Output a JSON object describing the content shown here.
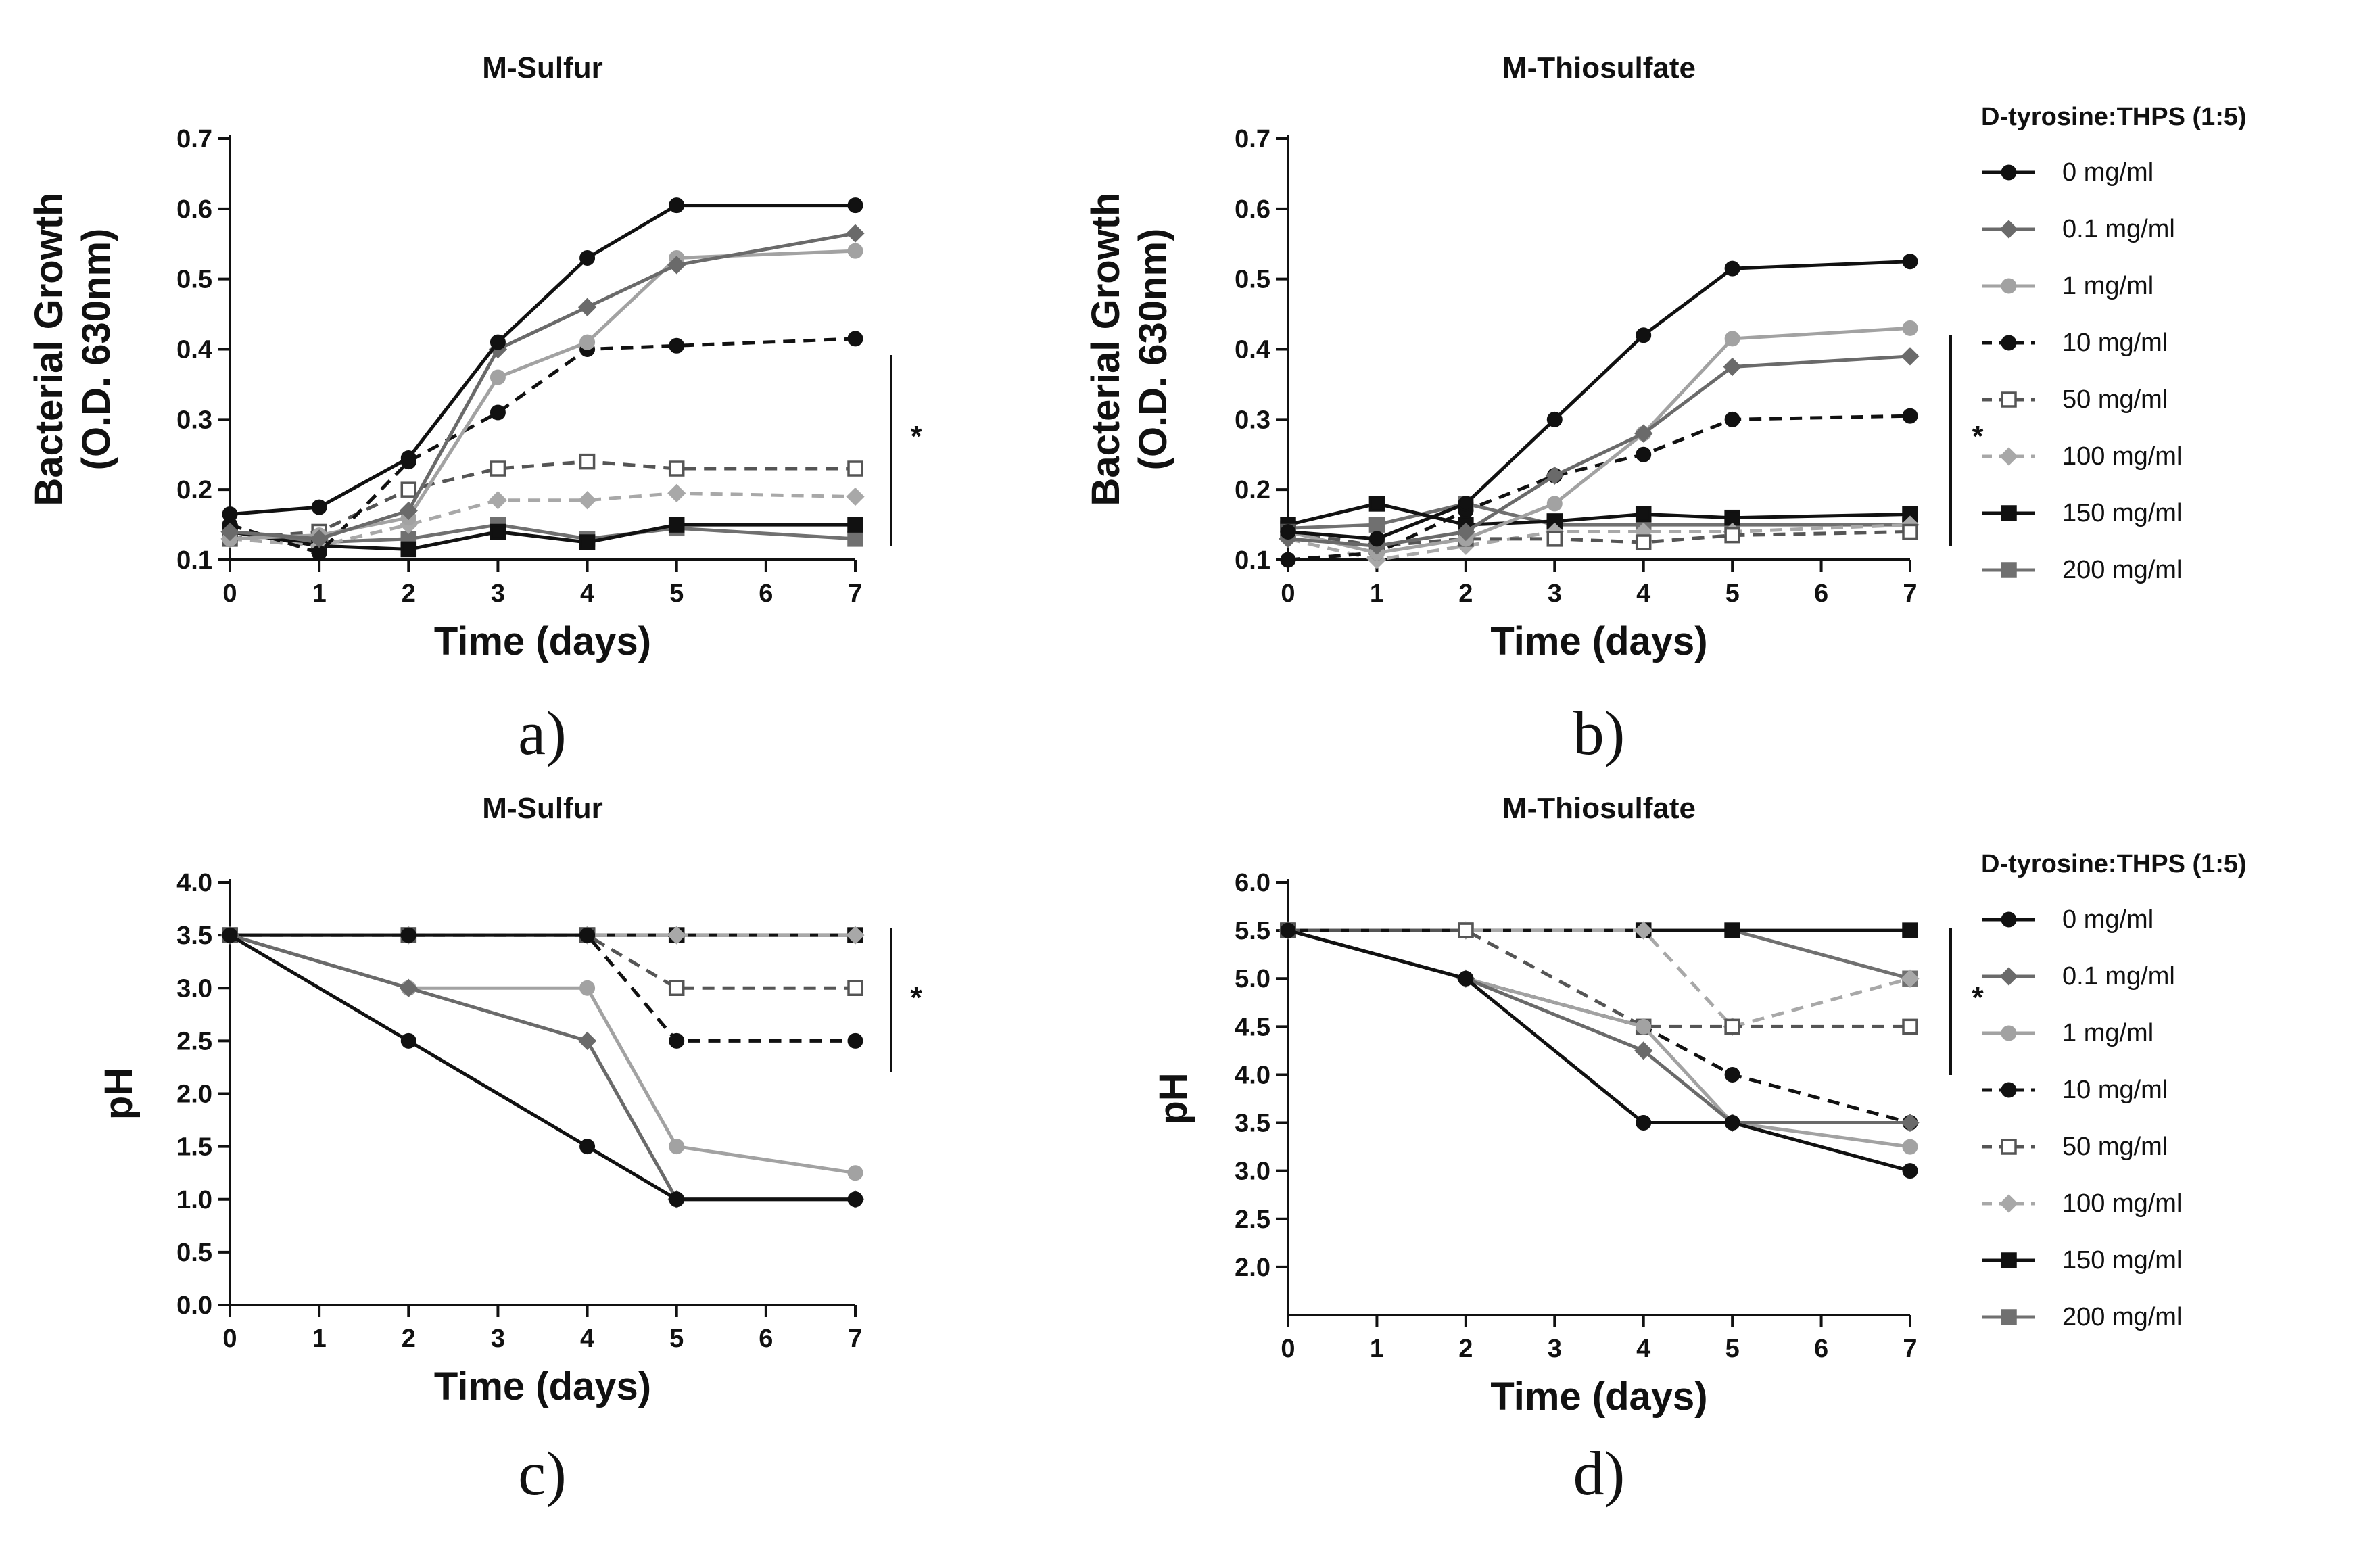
{
  "legend_title": "D-tyrosine:THPS (1:5)",
  "legend_entries": [
    "0 mg/ml",
    "0.1 mg/ml",
    "1 mg/ml",
    "10 mg/ml",
    "50 mg/ml",
    "100 mg/ml",
    "150 mg/ml",
    "200 mg/ml"
  ],
  "series_styles": [
    {
      "color": "#111111",
      "dash": false,
      "marker": "circle",
      "filled": true
    },
    {
      "color": "#6a6a6a",
      "dash": false,
      "marker": "diamond",
      "filled": true
    },
    {
      "color": "#a2a2a2",
      "dash": false,
      "marker": "circle",
      "filled": true
    },
    {
      "color": "#111111",
      "dash": true,
      "marker": "circle-half",
      "filled": true
    },
    {
      "color": "#555555",
      "dash": true,
      "marker": "square",
      "filled": false
    },
    {
      "color": "#a8a8a8",
      "dash": true,
      "marker": "diamond",
      "filled": true
    },
    {
      "color": "#111111",
      "dash": false,
      "marker": "square",
      "filled": true
    },
    {
      "color": "#707070",
      "dash": false,
      "marker": "square",
      "filled": true
    }
  ],
  "significance_marker": "*",
  "chart_data": [
    {
      "type": "line",
      "panel_label": "a)",
      "title": "M-Sulfur",
      "xlabel": "Time (days)",
      "ylabel": [
        "Bacterial Growth",
        "(O.D. 630nm)"
      ],
      "xlim": [
        0,
        7
      ],
      "ylim": [
        0.1,
        0.7
      ],
      "xticks": [
        "0",
        "1",
        "2",
        "3",
        "4",
        "5",
        "6",
        "7"
      ],
      "yticks": [
        "0.1",
        "0.2",
        "0.3",
        "0.4",
        "0.5",
        "0.6",
        "0.7"
      ],
      "significance": true,
      "series": [
        {
          "name": "0 mg/ml",
          "x": [
            0,
            1,
            2,
            3,
            4,
            5,
            7
          ],
          "y": [
            0.165,
            0.175,
            0.245,
            0.41,
            0.53,
            0.605,
            0.605
          ]
        },
        {
          "name": "0.1 mg/ml",
          "x": [
            0,
            1,
            2,
            3,
            4,
            5,
            7
          ],
          "y": [
            0.14,
            0.13,
            0.17,
            0.4,
            0.46,
            0.52,
            0.565
          ]
        },
        {
          "name": "1 mg/ml",
          "x": [
            0,
            1,
            2,
            3,
            4,
            5,
            7
          ],
          "y": [
            0.13,
            0.135,
            0.16,
            0.36,
            0.41,
            0.53,
            0.54
          ]
        },
        {
          "name": "10 mg/ml",
          "x": [
            0,
            1,
            2,
            3,
            4,
            5,
            7
          ],
          "y": [
            0.15,
            0.11,
            0.24,
            0.31,
            0.4,
            0.405,
            0.415
          ]
        },
        {
          "name": "50 mg/ml",
          "x": [
            0,
            1,
            2,
            3,
            4,
            5,
            7
          ],
          "y": [
            0.13,
            0.14,
            0.2,
            0.23,
            0.24,
            0.23,
            0.23
          ]
        },
        {
          "name": "100 mg/ml",
          "x": [
            0,
            1,
            2,
            3,
            4,
            5,
            7
          ],
          "y": [
            0.13,
            0.12,
            0.15,
            0.185,
            0.185,
            0.195,
            0.19
          ]
        },
        {
          "name": "150 mg/ml",
          "x": [
            0,
            1,
            2,
            3,
            4,
            5,
            7
          ],
          "y": [
            0.14,
            0.12,
            0.115,
            0.14,
            0.125,
            0.15,
            0.15
          ]
        },
        {
          "name": "200 mg/ml",
          "x": [
            0,
            1,
            2,
            3,
            4,
            5,
            7
          ],
          "y": [
            0.14,
            0.125,
            0.13,
            0.15,
            0.13,
            0.145,
            0.13
          ]
        }
      ]
    },
    {
      "type": "line",
      "panel_label": "b)",
      "title": "M-Thiosulfate",
      "xlabel": "Time (days)",
      "ylabel": [
        "Bacterial Growth",
        "(O.D. 630nm)"
      ],
      "xlim": [
        0,
        7
      ],
      "ylim": [
        0.1,
        0.7
      ],
      "xticks": [
        "0",
        "1",
        "2",
        "3",
        "4",
        "5",
        "6",
        "7"
      ],
      "yticks": [
        "0.1",
        "0.2",
        "0.3",
        "0.4",
        "0.5",
        "0.6",
        "0.7"
      ],
      "significance": true,
      "series": [
        {
          "name": "0 mg/ml",
          "x": [
            0,
            1,
            2,
            3,
            4,
            5,
            7
          ],
          "y": [
            0.14,
            0.13,
            0.18,
            0.3,
            0.42,
            0.515,
            0.525
          ]
        },
        {
          "name": "0.1 mg/ml",
          "x": [
            0,
            1,
            2,
            3,
            4,
            5,
            7
          ],
          "y": [
            0.13,
            0.12,
            0.14,
            0.22,
            0.28,
            0.375,
            0.39
          ]
        },
        {
          "name": "1 mg/ml",
          "x": [
            0,
            1,
            2,
            3,
            4,
            5,
            7
          ],
          "y": [
            0.14,
            0.11,
            0.13,
            0.18,
            0.28,
            0.415,
            0.43
          ]
        },
        {
          "name": "10 mg/ml",
          "x": [
            0,
            1,
            2,
            3,
            4,
            5,
            7
          ],
          "y": [
            0.1,
            0.11,
            0.17,
            0.22,
            0.25,
            0.3,
            0.305
          ]
        },
        {
          "name": "50 mg/ml",
          "x": [
            0,
            1,
            2,
            3,
            4,
            5,
            7
          ],
          "y": [
            0.14,
            0.12,
            0.13,
            0.13,
            0.125,
            0.135,
            0.14
          ]
        },
        {
          "name": "100 mg/ml",
          "x": [
            0,
            1,
            2,
            3,
            4,
            5,
            7
          ],
          "y": [
            0.13,
            0.1,
            0.12,
            0.14,
            0.14,
            0.14,
            0.15
          ]
        },
        {
          "name": "150 mg/ml",
          "x": [
            0,
            1,
            2,
            3,
            4,
            5,
            7
          ],
          "y": [
            0.15,
            0.18,
            0.15,
            0.155,
            0.165,
            0.16,
            0.165
          ]
        },
        {
          "name": "200 mg/ml",
          "x": [
            0,
            1,
            2,
            3,
            4,
            5,
            7
          ],
          "y": [
            0.145,
            0.15,
            0.18,
            0.15,
            0.15,
            0.15,
            0.15
          ]
        }
      ]
    },
    {
      "type": "line",
      "panel_label": "c)",
      "title": "M-Sulfur",
      "xlabel": "Time (days)",
      "ylabel": [
        "pH"
      ],
      "xlim": [
        0,
        7
      ],
      "ylim": [
        0,
        4
      ],
      "xticks": [
        "0",
        "1",
        "2",
        "3",
        "4",
        "5",
        "6",
        "7"
      ],
      "yticks": [
        "0.0",
        "0.5",
        "1.0",
        "1.5",
        "2.0",
        "2.5",
        "3.0",
        "3.5",
        "4.0"
      ],
      "significance": true,
      "series": [
        {
          "name": "0 mg/ml",
          "x": [
            0,
            2,
            4,
            5,
            7
          ],
          "y": [
            3.5,
            2.5,
            1.5,
            1.0,
            1.0
          ]
        },
        {
          "name": "0.1 mg/ml",
          "x": [
            0,
            2,
            4,
            5,
            7
          ],
          "y": [
            3.5,
            3.0,
            2.5,
            1.0,
            1.0
          ]
        },
        {
          "name": "1 mg/ml",
          "x": [
            0,
            2,
            4,
            5,
            7
          ],
          "y": [
            3.5,
            3.0,
            3.0,
            1.5,
            1.25
          ]
        },
        {
          "name": "10 mg/ml",
          "x": [
            0,
            2,
            4,
            5,
            7
          ],
          "y": [
            3.5,
            3.5,
            3.5,
            2.5,
            2.5
          ]
        },
        {
          "name": "50 mg/ml",
          "x": [
            0,
            2,
            4,
            5,
            7
          ],
          "y": [
            3.5,
            3.5,
            3.5,
            3.0,
            3.0
          ]
        },
        {
          "name": "100 mg/ml",
          "x": [
            0,
            2,
            4,
            5,
            7
          ],
          "y": [
            3.5,
            3.5,
            3.5,
            3.5,
            3.5
          ]
        },
        {
          "name": "150 mg/ml",
          "x": [
            0,
            2,
            4,
            5,
            7
          ],
          "y": [
            3.5,
            3.5,
            3.5,
            3.5,
            3.5
          ]
        },
        {
          "name": "200 mg/ml",
          "x": [
            0,
            2,
            4,
            5,
            7
          ],
          "y": [
            3.5,
            3.5,
            3.5,
            3.5,
            3.5
          ]
        }
      ]
    },
    {
      "type": "line",
      "panel_label": "d)",
      "title": "M-Thiosulfate",
      "xlabel": "Time (days)",
      "ylabel": [
        "pH"
      ],
      "xlim": [
        0,
        7
      ],
      "ylim": [
        1.5,
        6.0
      ],
      "xticks": [
        "0",
        "1",
        "2",
        "3",
        "4",
        "5",
        "6",
        "7"
      ],
      "yticks": [
        "2.0",
        "2.5",
        "3.0",
        "3.5",
        "4.0",
        "4.5",
        "5.0",
        "5.5",
        "6.0"
      ],
      "significance": true,
      "series": [
        {
          "name": "0 mg/ml",
          "x": [
            0,
            2,
            4,
            5,
            7
          ],
          "y": [
            5.5,
            5.0,
            3.5,
            3.5,
            3.0
          ]
        },
        {
          "name": "0.1 mg/ml",
          "x": [
            0,
            2,
            4,
            5,
            7
          ],
          "y": [
            5.5,
            5.0,
            4.25,
            3.5,
            3.5
          ]
        },
        {
          "name": "1 mg/ml",
          "x": [
            0,
            2,
            4,
            5,
            7
          ],
          "y": [
            5.5,
            5.0,
            4.5,
            3.5,
            3.25
          ]
        },
        {
          "name": "10 mg/ml",
          "x": [
            0,
            2,
            4,
            5,
            7
          ],
          "y": [
            5.5,
            5.0,
            4.5,
            4.0,
            3.5
          ]
        },
        {
          "name": "50 mg/ml",
          "x": [
            0,
            2,
            4,
            5,
            7
          ],
          "y": [
            5.5,
            5.5,
            4.5,
            4.5,
            4.5
          ]
        },
        {
          "name": "100 mg/ml",
          "x": [
            0,
            2,
            4,
            5,
            7
          ],
          "y": [
            5.5,
            5.5,
            5.5,
            4.5,
            5.0
          ]
        },
        {
          "name": "150 mg/ml",
          "x": [
            0,
            2,
            4,
            5,
            7
          ],
          "y": [
            5.5,
            5.5,
            5.5,
            5.5,
            5.5
          ]
        },
        {
          "name": "200 mg/ml",
          "x": [
            0,
            2,
            4,
            5,
            7
          ],
          "y": [
            5.5,
            5.5,
            5.5,
            5.5,
            5.0
          ]
        }
      ]
    }
  ]
}
